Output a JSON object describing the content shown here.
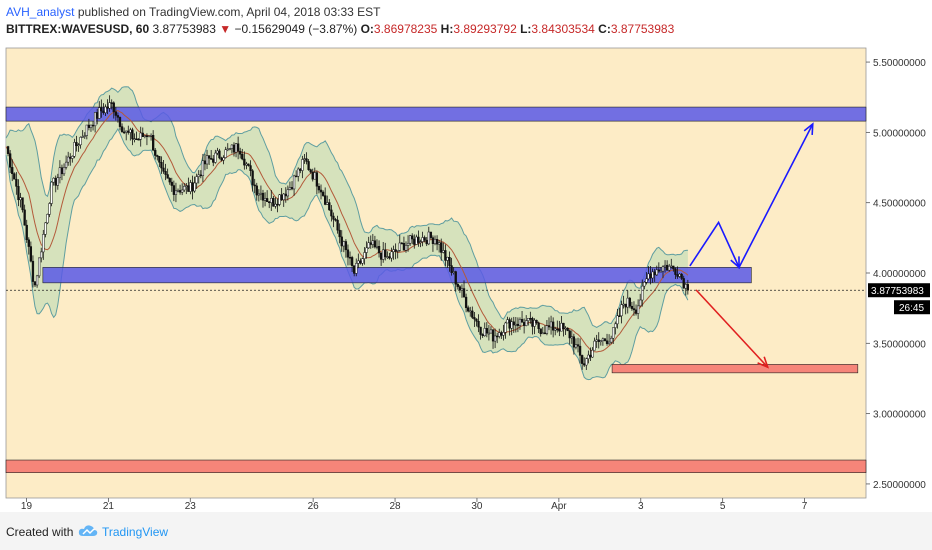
{
  "header": {
    "author": "AVH_analyst",
    "published": "published on TradingView.com, April 04, 2018 03:33 EST",
    "symbol": "BITTREX:WAVESUSD, 60",
    "last": "3.87753983",
    "arrow": "▼",
    "change": "−0.15629049 (−3.87%)",
    "o_label": "O:",
    "o_value": "3.86978235",
    "h_label": "H:",
    "h_value": "3.89293792",
    "l_label": "L:",
    "l_value": "3.84303534",
    "c_label": "C:",
    "c_value": "3.87753983"
  },
  "footer": {
    "created_with": "Created with",
    "brand": "TradingView",
    "brand_icon": "tradingview-cloud-icon"
  },
  "colors": {
    "background": "#fdecc6",
    "candle": "#111111",
    "bollinger_fill": "#c8dfb8",
    "bollinger_line": "#5f9ea0",
    "moving_average": "#b35a3a",
    "resistance_zone": "#5959e6",
    "support_zone_lower": "#f5736b",
    "target_zone": "#f5736b",
    "bullish_arrow": "#1a1aff",
    "bearish_arrow": "#e02020"
  },
  "chart_data": {
    "type": "candlestick",
    "ylim": [
      2.4,
      5.6
    ],
    "x_tick_labels": [
      "19",
      "21",
      "23",
      "26",
      "28",
      "30",
      "Apr",
      "3",
      "5",
      "7"
    ],
    "y_tick_labels": [
      "5.50000000",
      "5.00000000",
      "4.50000000",
      "4.00000000",
      "3.50000000",
      "3.00000000",
      "2.50000000"
    ],
    "y_ticks": [
      5.5,
      5.0,
      4.5,
      4.0,
      3.5,
      3.0,
      2.5
    ],
    "x_ticks": [
      1,
      3,
      5,
      8,
      10,
      12,
      14,
      16,
      18,
      20
    ],
    "x_range": [
      0.5,
      21.5
    ],
    "last_price_label": "3.87753983",
    "last_price": 3.8775,
    "countdown_label": "26:45",
    "price_path": [
      [
        0.5,
        4.9
      ],
      [
        0.9,
        4.45
      ],
      [
        1.2,
        3.9
      ],
      [
        1.6,
        4.6
      ],
      [
        2.0,
        4.8
      ],
      [
        2.4,
        5.0
      ],
      [
        2.8,
        5.15
      ],
      [
        3.1,
        5.2
      ],
      [
        3.4,
        5.0
      ],
      [
        3.7,
        4.95
      ],
      [
        4.0,
        5.0
      ],
      [
        4.3,
        4.7
      ],
      [
        4.6,
        4.6
      ],
      [
        5.0,
        4.6
      ],
      [
        5.4,
        4.8
      ],
      [
        5.8,
        4.85
      ],
      [
        6.2,
        4.9
      ],
      [
        6.6,
        4.6
      ],
      [
        7.0,
        4.5
      ],
      [
        7.4,
        4.6
      ],
      [
        7.8,
        4.8
      ],
      [
        8.2,
        4.6
      ],
      [
        8.6,
        4.3
      ],
      [
        9.0,
        4.0
      ],
      [
        9.4,
        4.2
      ],
      [
        9.8,
        4.1
      ],
      [
        10.2,
        4.2
      ],
      [
        10.6,
        4.25
      ],
      [
        11.0,
        4.25
      ],
      [
        11.4,
        4.0
      ],
      [
        11.8,
        3.75
      ],
      [
        12.1,
        3.6
      ],
      [
        12.4,
        3.55
      ],
      [
        12.8,
        3.65
      ],
      [
        13.2,
        3.65
      ],
      [
        13.6,
        3.6
      ],
      [
        14.0,
        3.62
      ],
      [
        14.3,
        3.55
      ],
      [
        14.6,
        3.35
      ],
      [
        14.9,
        3.5
      ],
      [
        15.3,
        3.55
      ],
      [
        15.6,
        3.8
      ],
      [
        15.9,
        3.75
      ],
      [
        16.2,
        4.0
      ],
      [
        16.6,
        4.05
      ],
      [
        16.9,
        4.02
      ],
      [
        17.15,
        3.88
      ]
    ],
    "annotations": [
      {
        "type": "zone",
        "name": "upper-resistance-zone",
        "y_low": 5.08,
        "y_high": 5.18,
        "x_from": 0.5,
        "x_to": 21.5,
        "color": "resistance_zone"
      },
      {
        "type": "zone",
        "name": "breakout-resistance-zone",
        "y_low": 3.93,
        "y_high": 4.04,
        "x_from": 1.4,
        "x_to": 18.7,
        "color": "resistance_zone"
      },
      {
        "type": "zone",
        "name": "target-support-zone",
        "y_low": 3.29,
        "y_high": 3.35,
        "x_from": 15.3,
        "x_to": 21.3,
        "color": "target_zone"
      },
      {
        "type": "zone",
        "name": "lower-support-zone",
        "y_low": 2.58,
        "y_high": 2.67,
        "x_from": 0.5,
        "x_to": 21.5,
        "color": "support_zone_lower"
      },
      {
        "type": "path",
        "name": "bullish-scenario-arrow",
        "color": "bullish_arrow",
        "points": [
          [
            17.2,
            4.05
          ],
          [
            17.9,
            4.36
          ],
          [
            18.4,
            4.04
          ],
          [
            20.2,
            5.06
          ]
        ]
      },
      {
        "type": "path",
        "name": "bearish-scenario-arrow",
        "color": "bearish_arrow",
        "points": [
          [
            17.35,
            3.88
          ],
          [
            19.1,
            3.33
          ]
        ]
      }
    ]
  }
}
